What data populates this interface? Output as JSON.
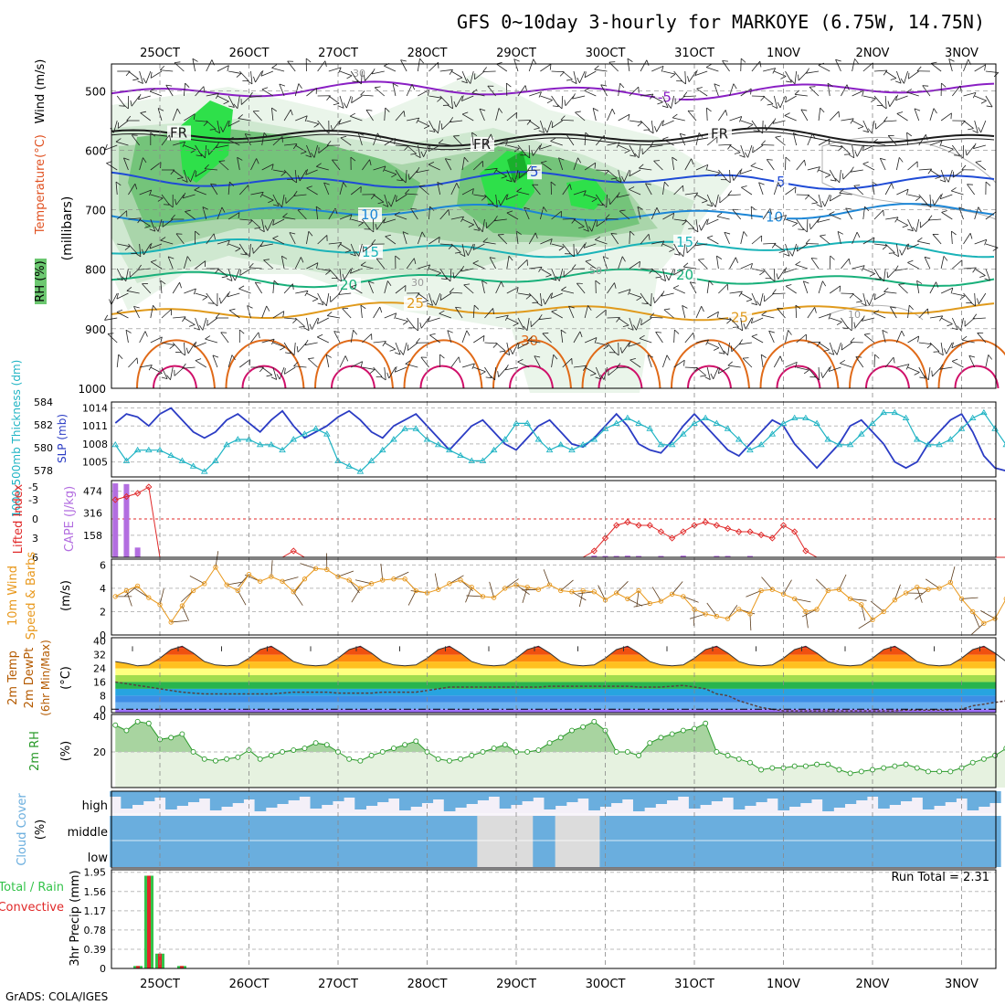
{
  "title": "GFS 0~10day 3-hourly for MARKOYE (6.75W, 14.75N)",
  "credit": "GrADS: COLA/IGES",
  "colors": {
    "rh": "#34c34a",
    "temp": "#e05020",
    "wind": "#1f4bd6",
    "slp": "#2b3cc4",
    "thick": "#20b4c4",
    "cape": "#b36ee0",
    "li": "#e02828",
    "wind10": "#e8981c",
    "rh2m": "#2a9a2a",
    "cloud": "#6aaede",
    "precipTotal": "#34c34a",
    "precipConv": "#e02828"
  },
  "time_axis": {
    "top_labels": [
      "25OCT",
      "26OCT",
      "27OCT",
      "28OCT",
      "29OCT",
      "30OCT",
      "31OCT",
      "1NOV",
      "2NOV",
      "3NOV"
    ],
    "bottom_labels": [
      "25OCT",
      "26OCT",
      "27OCT",
      "28OCT",
      "29OCT",
      "30OCT",
      "31OCT",
      "1NOV",
      "2NOV",
      "3NOV"
    ]
  },
  "panels": {
    "upper": {
      "ylabel_parts": [
        "RH (%)",
        "Temperature",
        "(°C)",
        "Wind (m/s)"
      ],
      "units": "(millibars)",
      "yticks": [
        "500",
        "600",
        "700",
        "800",
        "900",
        "1000"
      ]
    },
    "slp": {
      "ylabel_left": "1000-500mb Thickness (dm)",
      "ylabel_right": "SLP (mb)",
      "yticks_left": [
        "584",
        "582",
        "580",
        "578"
      ],
      "yticks_right": [
        "1014",
        "1011",
        "1008",
        "1005"
      ]
    },
    "cape": {
      "ylabel_left": "Lifted Index",
      "ylabel_right": "CAPE (J/kg)",
      "yticks_left": [
        "-5",
        "-3",
        "0",
        "3",
        "6"
      ],
      "yticks_right": [
        "474",
        "316",
        "158"
      ]
    },
    "wind10": {
      "ylabel": "10m Wind",
      "ylabel2": "Speed & Barbs",
      "units": "(m/s)",
      "yticks": [
        "6",
        "4",
        "2",
        "0"
      ]
    },
    "temp2m": {
      "ylabel": "2m Temp",
      "ylabel2": "2m DewPt",
      "ylabel3": "(6hr Min/Max)",
      "units": "(°C)",
      "yticks": [
        "40",
        "32",
        "24",
        "16",
        "8",
        "0"
      ]
    },
    "rh2m": {
      "ylabel": "2m RH",
      "units": "(%)",
      "yticks": [
        "40",
        "20"
      ]
    },
    "cloud": {
      "ylabel": "Cloud Cover",
      "units": "(%)",
      "levels": [
        "high",
        "middle",
        "low"
      ]
    },
    "precip": {
      "ylabel": "3hr Precip (mm)",
      "ylabel_left": "Total / Rain",
      "ylabel_left2": "Convective",
      "yticks": [
        "1.95",
        "1.56",
        "1.17",
        "0.78",
        "0.39",
        "0"
      ],
      "run_total": "Run Total = 2.31"
    }
  },
  "chart_data": [
    {
      "type": "heatmap",
      "panel": "upper-air",
      "x": "time (3-hourly, 24 Oct 12Z – 3 Nov 06Z)",
      "y": "pressure (millibars)",
      "ylim": [
        1000,
        450
      ],
      "contour_labels": [
        "-5",
        "FR",
        "FR",
        "FR",
        "5",
        "5",
        "10",
        "10",
        "15",
        "15",
        "20",
        "20",
        "25",
        "25",
        "30",
        "30",
        "50",
        "30",
        "10"
      ],
      "temperature_levels_C": [
        -5,
        0,
        5,
        10,
        15,
        20,
        25,
        30
      ],
      "temperature_level_pressure_mb": [
        500,
        580,
        650,
        705,
        765,
        815,
        870,
        950
      ],
      "rh_shading_percent": [
        10,
        30,
        50,
        70,
        90
      ]
    },
    {
      "type": "line",
      "panel": "slp-thickness",
      "series": [
        {
          "name": "SLP (mb)",
          "values": [
            1011.5,
            1013,
            1012.5,
            1011,
            1013,
            1014,
            1012,
            1010,
            1009,
            1010,
            1012,
            1013,
            1011.5,
            1010,
            1012,
            1013.5,
            1011,
            1009,
            1010,
            1011,
            1012.5,
            1013.5,
            1012,
            1010,
            1009,
            1011,
            1012,
            1013,
            1011,
            1009,
            1007,
            1009,
            1011,
            1012,
            1010,
            1008,
            1007,
            1009,
            1011,
            1012,
            1010,
            1008,
            1007.5,
            1009,
            1011,
            1013,
            1011,
            1008,
            1007,
            1006.5,
            1008.5,
            1011,
            1013,
            1011,
            1009,
            1007,
            1006,
            1008,
            1010,
            1012,
            1011,
            1008,
            1006,
            1004,
            1006,
            1008,
            1011,
            1012,
            1010,
            1008,
            1005,
            1004,
            1005,
            1008,
            1010,
            1012,
            1013,
            1010,
            1006,
            1004,
            1003.5,
            1006,
            1008
          ]
        },
        {
          "name": "1000-500mb Thickness (dm)",
          "values": [
            580.5,
            579,
            580,
            580,
            580,
            579.5,
            579,
            578.5,
            578,
            579,
            580.5,
            581,
            581,
            580.5,
            580.5,
            580,
            581,
            581.5,
            582,
            581.5,
            579,
            578.5,
            578,
            579,
            580,
            581,
            582,
            582,
            581,
            580.5,
            580,
            579.5,
            579,
            579,
            580,
            581,
            582.5,
            582.5,
            581,
            580,
            580.5,
            580,
            580.5,
            581,
            582,
            582.5,
            583,
            582.5,
            582,
            580.5,
            580.5,
            581.5,
            582.5,
            583,
            582.5,
            582,
            581,
            580,
            580.5,
            581.5,
            582.5,
            583,
            583,
            582.5,
            581,
            580.5,
            580.5,
            581.5,
            582.5,
            583.5,
            583.5,
            583,
            581,
            580.5,
            580.5,
            581,
            582,
            583,
            583.5,
            582,
            580.5,
            580,
            580
          ]
        }
      ]
    },
    {
      "type": "bar",
      "panel": "cape-li",
      "series": [
        {
          "name": "CAPE (J/kg)",
          "values": [
            530,
            525,
            70,
            0,
            0,
            0,
            0,
            0,
            0,
            0,
            0,
            0,
            0,
            0,
            0,
            0,
            0,
            0,
            0,
            0,
            0,
            0,
            0,
            0,
            0,
            0,
            0,
            0,
            0,
            0,
            0,
            0,
            0,
            0,
            0,
            0,
            0,
            0,
            0,
            0,
            0,
            0,
            0,
            12,
            10,
            10,
            12,
            10,
            0,
            10,
            0,
            12,
            0,
            0,
            10,
            10,
            0,
            10,
            0,
            0,
            0,
            0,
            0,
            0,
            0,
            0,
            0,
            0,
            0,
            0,
            0,
            0,
            0,
            0,
            0,
            0,
            0,
            0,
            0,
            0,
            0,
            0,
            0
          ]
        },
        {
          "name": "Lifted Index",
          "values": [
            -3,
            -3.5,
            -4,
            -5,
            6,
            6,
            6,
            6,
            6,
            6,
            6,
            6,
            6,
            6,
            6,
            6,
            5,
            6,
            6,
            6,
            6,
            6,
            6,
            6,
            6,
            6,
            6,
            6,
            6,
            6,
            6,
            6,
            6,
            6,
            6,
            6,
            6,
            6,
            6,
            6,
            6,
            6,
            6,
            5,
            3,
            1,
            0.5,
            1,
            1,
            2,
            3,
            2,
            1,
            0.5,
            1,
            1.5,
            2,
            2,
            2.5,
            3,
            1,
            2,
            5,
            6,
            6,
            6,
            6,
            6,
            6,
            6,
            6,
            6,
            6,
            6,
            6,
            6,
            6,
            6,
            6,
            6,
            6,
            6,
            6
          ]
        }
      ]
    },
    {
      "type": "line",
      "panel": "wind10m",
      "ylabel": "(m/s)",
      "ylim": [
        0,
        6
      ],
      "series": [
        {
          "name": "10m Wind Speed",
          "values": [
            3.3,
            3.8,
            4.2,
            3.2,
            2.6,
            1.1,
            2.5,
            3.8,
            4.4,
            5.8,
            4.3,
            3.8,
            5.2,
            4.6,
            5.0,
            4.6,
            3.7,
            4.8,
            5.7,
            5.6,
            5.0,
            4.7,
            4.0,
            4.4,
            4.7,
            4.8,
            4.8,
            3.8,
            3.6,
            3.9,
            4.4,
            4.7,
            4.1,
            3.3,
            3.2,
            4.0,
            4.3,
            4.1,
            3.9,
            4.3,
            3.8,
            3.7,
            3.8,
            3.7,
            3.0,
            3.6,
            3.1,
            3.8,
            2.7,
            2.9,
            3.5,
            3.3,
            2.2,
            1.8,
            1.6,
            1.4,
            2.2,
            1.8,
            3.8,
            3.9,
            3.5,
            3.1,
            2.0,
            2.2,
            3.8,
            3.9,
            3.1,
            2.6,
            1.3,
            2.0,
            3.0,
            3.6,
            4.1,
            3.9,
            4.0,
            4.5,
            3.1,
            2.0,
            1.0,
            1.4,
            3.1,
            3.8,
            3.7
          ]
        }
      ]
    },
    {
      "type": "area",
      "panel": "temp2m",
      "ylabel": "(°C)",
      "ylim": [
        -2,
        42
      ],
      "series": [
        {
          "name": "2m Temp",
          "values": [
            28,
            27,
            25.5,
            26,
            30,
            35,
            37,
            33,
            28,
            26,
            25.5,
            26,
            30,
            35,
            37,
            33,
            28,
            26,
            25.5,
            26,
            30,
            35,
            37,
            33,
            28,
            26,
            25.5,
            26,
            30,
            35,
            37,
            33,
            28,
            26,
            25.5,
            26,
            30,
            35,
            37,
            33,
            28,
            26,
            25.5,
            26,
            30,
            35,
            37,
            33,
            28,
            26,
            25.5,
            26,
            30,
            35,
            37,
            33,
            28,
            26,
            25.5,
            26,
            30,
            35,
            37,
            33,
            28,
            26,
            25.5,
            26,
            30,
            35,
            37,
            33,
            28,
            26,
            25.5,
            26,
            30,
            35,
            37,
            33,
            28,
            26,
            25
          ]
        },
        {
          "name": "2m DewPt",
          "values": [
            16,
            15,
            14,
            13,
            12,
            11,
            10,
            9.5,
            9,
            9,
            9,
            9,
            9,
            9,
            9,
            9.5,
            10,
            10,
            10,
            10,
            9.5,
            9.5,
            9.5,
            9.5,
            10,
            10,
            10,
            10,
            11,
            12,
            13,
            13,
            13,
            13,
            13,
            13,
            13,
            13,
            13,
            13.5,
            13.5,
            13.5,
            13.5,
            13.5,
            13.5,
            13.5,
            13.5,
            13,
            13,
            13,
            13.5,
            14,
            13,
            12,
            9,
            8,
            5,
            3,
            1,
            0,
            -1,
            -1,
            -1,
            -1,
            -1,
            -1,
            -1,
            -1,
            -1,
            -1,
            -1,
            -0.5,
            -0.5,
            -0.5,
            -0.5,
            -0.5,
            0,
            2,
            3,
            4,
            5,
            5
          ]
        }
      ]
    },
    {
      "type": "area",
      "panel": "rh2m",
      "ylabel": "(%)",
      "ylim": [
        0,
        40
      ],
      "series": [
        {
          "name": "2m RH",
          "values": [
            35,
            32,
            37,
            36,
            27,
            28,
            30,
            20,
            16,
            15,
            16,
            17,
            21,
            16,
            18,
            20,
            21,
            22,
            25,
            24,
            20,
            16,
            15,
            18,
            20,
            22,
            24,
            26,
            20,
            16,
            15,
            16,
            18,
            20,
            22,
            24,
            20,
            20,
            21,
            25,
            28,
            32,
            34,
            37,
            32,
            20,
            20,
            18,
            25,
            28,
            30,
            32,
            33,
            36,
            20,
            18,
            16,
            14,
            10,
            11,
            11,
            12,
            12,
            13,
            13,
            10,
            8,
            9,
            10,
            11,
            12,
            13,
            11,
            9,
            9,
            9,
            11,
            14,
            16,
            18,
            22,
            24,
            28
          ]
        }
      ]
    },
    {
      "type": "heatmap",
      "panel": "cloud-cover",
      "levels": [
        "high",
        "middle",
        "low"
      ],
      "ylabel": "Cloud Cover (%)"
    },
    {
      "type": "bar",
      "panel": "precip-3hr",
      "ylabel": "3hr Precip (mm)",
      "ylim": [
        0,
        1.95
      ],
      "annotation": "Run Total = 2.31",
      "series": [
        {
          "name": "Total / Rain",
          "values": [
            0,
            0.05,
            1.88,
            0.3,
            0,
            0.05,
            0,
            0,
            0
          ]
        },
        {
          "name": "Convective",
          "values": [
            0,
            0.05,
            1.88,
            0.3,
            0,
            0.05,
            0,
            0,
            0
          ]
        }
      ]
    }
  ]
}
